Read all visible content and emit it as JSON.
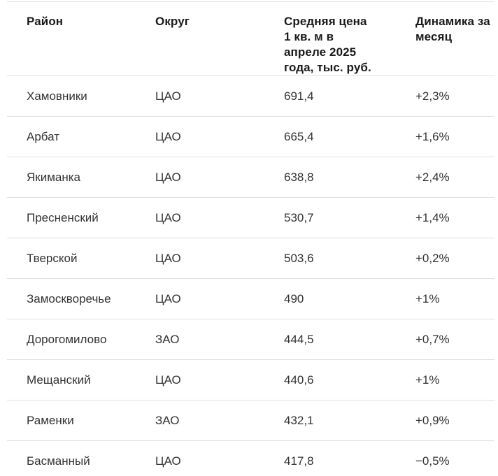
{
  "table": {
    "columns": [
      {
        "label": "Район"
      },
      {
        "label": "Округ"
      },
      {
        "label": "Средняя цена\n1 кв. м в\nапреле 2025\nгода, тыс. руб."
      },
      {
        "label": "Динамика за\nмесяц"
      }
    ],
    "rows": [
      {
        "district": "Хамовники",
        "okrug": "ЦАО",
        "price": "691,4",
        "dynamics": "+2,3%"
      },
      {
        "district": "Арбат",
        "okrug": "ЦАО",
        "price": "665,4",
        "dynamics": "+1,6%"
      },
      {
        "district": "Якиманка",
        "okrug": "ЦАО",
        "price": "638,8",
        "dynamics": "+2,4%"
      },
      {
        "district": "Пресненский",
        "okrug": "ЦАО",
        "price": "530,7",
        "dynamics": "+1,4%"
      },
      {
        "district": "Тверской",
        "okrug": "ЦАО",
        "price": "503,6",
        "dynamics": "+0,2%"
      },
      {
        "district": "Замоскворечье",
        "okrug": "ЦАО",
        "price": "490",
        "dynamics": "+1%"
      },
      {
        "district": "Дорогомилово",
        "okrug": "ЗАО",
        "price": "444,5",
        "dynamics": "+0,7%"
      },
      {
        "district": "Мещанский",
        "okrug": "ЦАО",
        "price": "440,6",
        "dynamics": "+1%"
      },
      {
        "district": "Раменки",
        "okrug": "ЗАО",
        "price": "432,1",
        "dynamics": "+0,9%"
      },
      {
        "district": "Басманный",
        "okrug": "ЦАО",
        "price": "417,8",
        "dynamics": "−0,5%"
      }
    ]
  },
  "colors": {
    "background": "#ffffff",
    "header_text": "#1a1a1a",
    "body_text": "#333333",
    "separator": "#e0e0e0"
  },
  "chart_data": {
    "type": "table",
    "title": "",
    "columns": [
      "Район",
      "Округ",
      "Средняя цена 1 кв. м в апреле 2025 года, тыс. руб.",
      "Динамика за месяц"
    ],
    "rows": [
      [
        "Хамовники",
        "ЦАО",
        691.4,
        "+2,3%"
      ],
      [
        "Арбат",
        "ЦАО",
        665.4,
        "+1,6%"
      ],
      [
        "Якиманка",
        "ЦАО",
        638.8,
        "+2,4%"
      ],
      [
        "Пресненский",
        "ЦАО",
        530.7,
        "+1,4%"
      ],
      [
        "Тверской",
        "ЦАО",
        503.6,
        "+0,2%"
      ],
      [
        "Замоскворечье",
        "ЦАО",
        490,
        "+1%"
      ],
      [
        "Дорогомилово",
        "ЗАО",
        444.5,
        "+0,7%"
      ],
      [
        "Мещанский",
        "ЦАО",
        440.6,
        "+1%"
      ],
      [
        "Раменки",
        "ЗАО",
        432.1,
        "+0,9%"
      ],
      [
        "Басманный",
        "ЦАО",
        417.8,
        "−0,5%"
      ]
    ]
  }
}
